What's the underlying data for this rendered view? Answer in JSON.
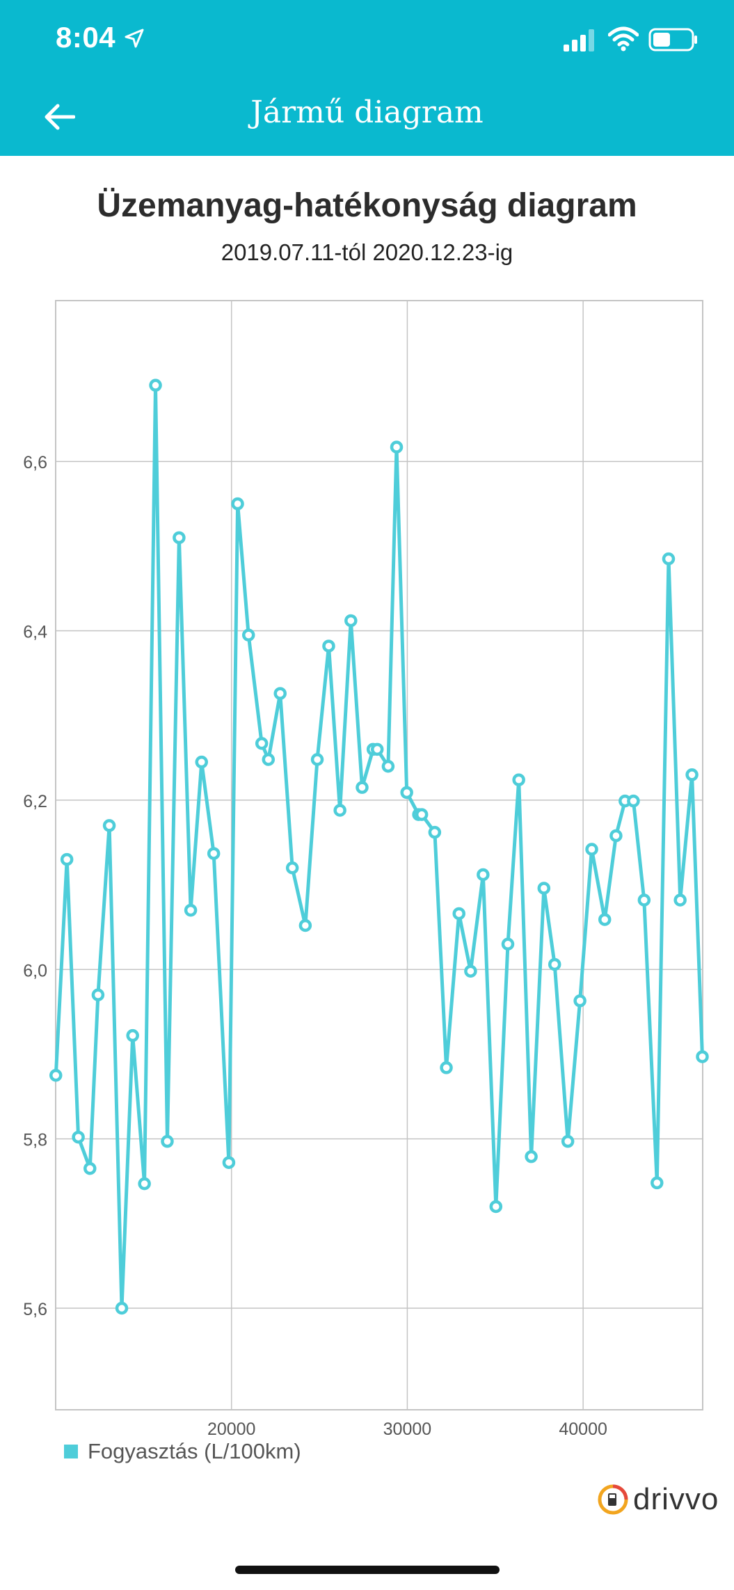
{
  "status_bar": {
    "time": "8:04"
  },
  "appbar": {
    "title": "Jármű diagram"
  },
  "chart_data": {
    "type": "line",
    "title": "Üzemanyag-hatékonyság diagram",
    "subtitle": "2019.07.11-tól 2020.12.23-ig",
    "xlabel": "",
    "ylabel": "",
    "xlim": [
      10000,
      46800
    ],
    "ylim": [
      5.48,
      6.79
    ],
    "x_ticks": [
      20000,
      30000,
      40000
    ],
    "y_ticks": [
      5.6,
      5.8,
      6.0,
      6.2,
      6.4,
      6.6
    ],
    "y_tick_labels": [
      "5,6",
      "5,8",
      "6,0",
      "6,2",
      "6,4",
      "6,6"
    ],
    "grid": true,
    "legend_position": "bottom-left",
    "series": [
      {
        "name": "Fogyasztás (L/100km)",
        "color": "#4ecdd9",
        "x": [
          10010,
          10640,
          11290,
          11950,
          12410,
          13050,
          13760,
          14380,
          15050,
          15680,
          16350,
          17020,
          17680,
          18300,
          18990,
          19850,
          20350,
          20970,
          21720,
          22100,
          22770,
          23460,
          24200,
          24880,
          25530,
          26170,
          26790,
          27430,
          28050,
          28290,
          28910,
          29390,
          29970,
          30640,
          30820,
          31560,
          32220,
          32940,
          33600,
          34310,
          35040,
          35720,
          36340,
          37050,
          37770,
          38380,
          39130,
          39820,
          40490,
          41230,
          41870,
          42380,
          42860,
          43470,
          44200,
          44860,
          45520,
          46190,
          46780
        ],
        "values": [
          5.875,
          6.13,
          5.802,
          5.765,
          5.97,
          6.17,
          5.6,
          5.922,
          5.747,
          6.69,
          5.797,
          6.51,
          6.07,
          6.245,
          6.137,
          5.772,
          6.55,
          6.395,
          6.267,
          6.248,
          6.326,
          6.12,
          6.052,
          6.248,
          6.382,
          6.188,
          6.412,
          6.215,
          6.26,
          6.26,
          6.24,
          6.617,
          6.209,
          6.183,
          6.183,
          6.162,
          5.884,
          6.066,
          5.998,
          6.112,
          5.72,
          6.03,
          6.224,
          5.779,
          6.096,
          6.006,
          5.797,
          5.963,
          6.142,
          6.059,
          6.158,
          6.199,
          6.199,
          6.082,
          5.748,
          6.485,
          6.082,
          6.23,
          5.897
        ]
      }
    ]
  },
  "legend": {
    "label": "Fogyasztás (L/100km)"
  },
  "brand": {
    "name": "drivvo"
  }
}
